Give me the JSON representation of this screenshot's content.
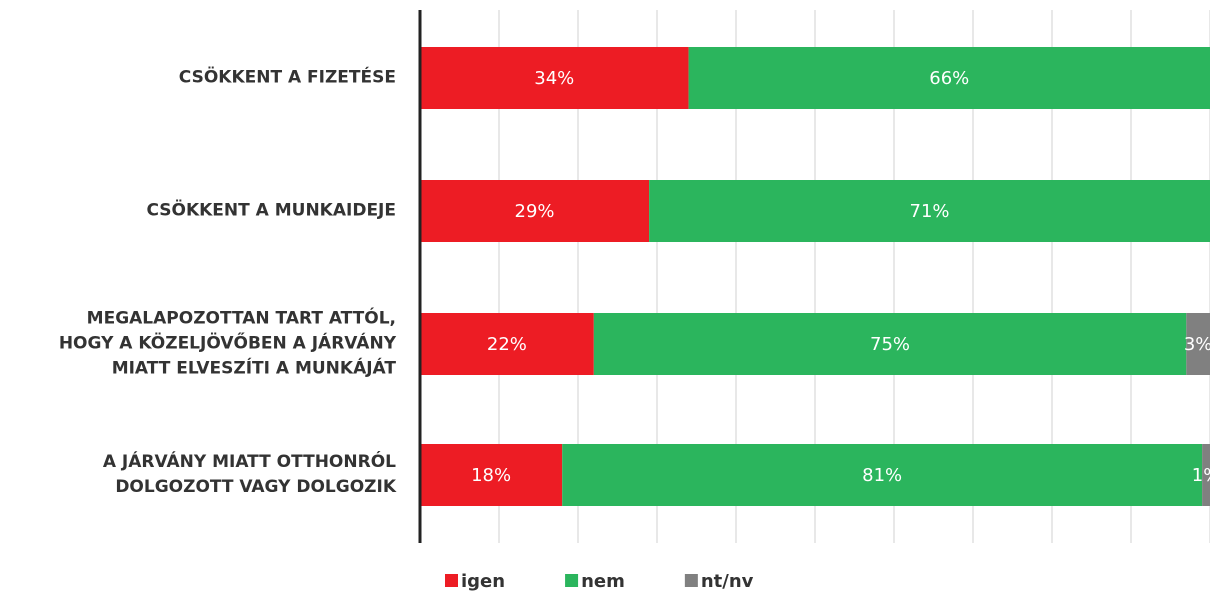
{
  "chart_data": {
    "type": "stacked-barh",
    "categories": [
      "CSÖKKENT A FIZETÉSE",
      "CSÖKKENT A MUNKAIDEJE",
      "MEGALAPOZOTTAN TART ATTÓL,\nHOGY A KÖZELJÖVŐBEN A JÁRVÁNY\nMIATT ELVESZÍTI A MUNKÁJÁT",
      "A JÁRVÁNY MIATT OTTHONRÓL\nDOLGOZOTT VAGY DOLGOZIK"
    ],
    "series": [
      {
        "name": "igen",
        "color": "#ed1c24",
        "values": [
          34,
          29,
          22,
          18
        ],
        "value_labels": [
          "34%",
          "29%",
          "22%",
          "18%"
        ]
      },
      {
        "name": "nem",
        "color": "#2bb55d",
        "values": [
          66,
          71,
          75,
          81
        ],
        "value_labels": [
          "66%",
          "71%",
          "75%",
          "81%"
        ]
      },
      {
        "name": "nt/nv",
        "color": "#808080",
        "values": [
          null,
          null,
          3,
          1
        ],
        "value_labels": [
          null,
          null,
          "3%",
          "1%"
        ]
      }
    ],
    "xlim": [
      0,
      100
    ],
    "xticks": [
      0,
      10,
      20,
      30,
      40,
      50,
      60,
      70,
      80,
      90,
      100
    ],
    "grid": true,
    "legend": "bottom"
  }
}
